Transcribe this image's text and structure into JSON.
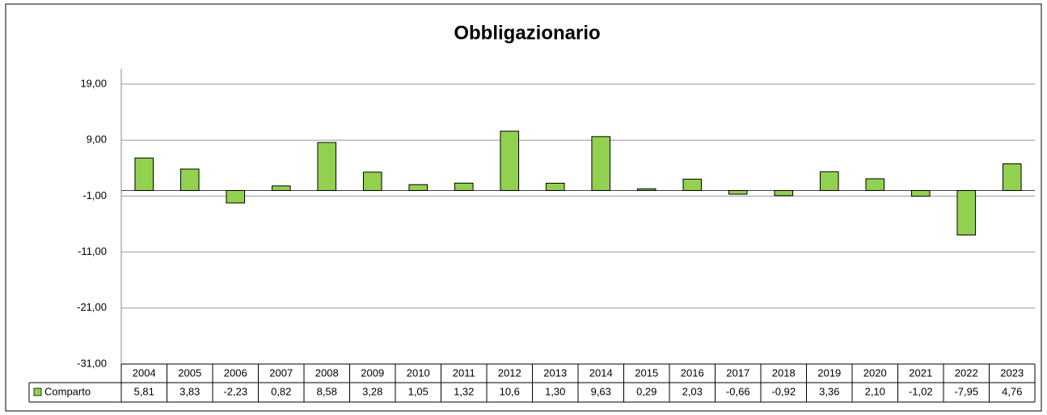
{
  "chart_data": {
    "type": "bar",
    "title": "Obbligazionario",
    "categories": [
      "2004",
      "2005",
      "2006",
      "2007",
      "2008",
      "2009",
      "2010",
      "2011",
      "2012",
      "2013",
      "2014",
      "2015",
      "2016",
      "2017",
      "2018",
      "2019",
      "2020",
      "2021",
      "2022",
      "2023"
    ],
    "series": [
      {
        "name": "Comparto",
        "color": "#92d050",
        "values": [
          5.81,
          3.83,
          -2.23,
          0.82,
          8.58,
          3.28,
          1.05,
          1.32,
          10.6,
          1.3,
          9.63,
          0.29,
          2.03,
          -0.66,
          -0.92,
          3.36,
          2.1,
          -1.02,
          -7.95,
          4.76
        ],
        "value_labels": [
          "5,81",
          "3,83",
          "-2,23",
          "0,82",
          "8,58",
          "3,28",
          "1,05",
          "1,32",
          "10,6",
          "1,30",
          "9,63",
          "0,29",
          "2,03",
          "-0,66",
          "-0,92",
          "3,36",
          "2,10",
          "-1,02",
          "-7,95",
          "4,76"
        ]
      }
    ],
    "ylim": [
      -31,
      19
    ],
    "yticks": [
      {
        "value": -31,
        "label": "-31,00"
      },
      {
        "value": -21,
        "label": "-21,00"
      },
      {
        "value": -11,
        "label": "-11,00"
      },
      {
        "value": -1,
        "label": "-1,00"
      },
      {
        "value": 9,
        "label": "9,00"
      },
      {
        "value": 19,
        "label": "19,00"
      }
    ],
    "grid": true,
    "legend": "table"
  }
}
